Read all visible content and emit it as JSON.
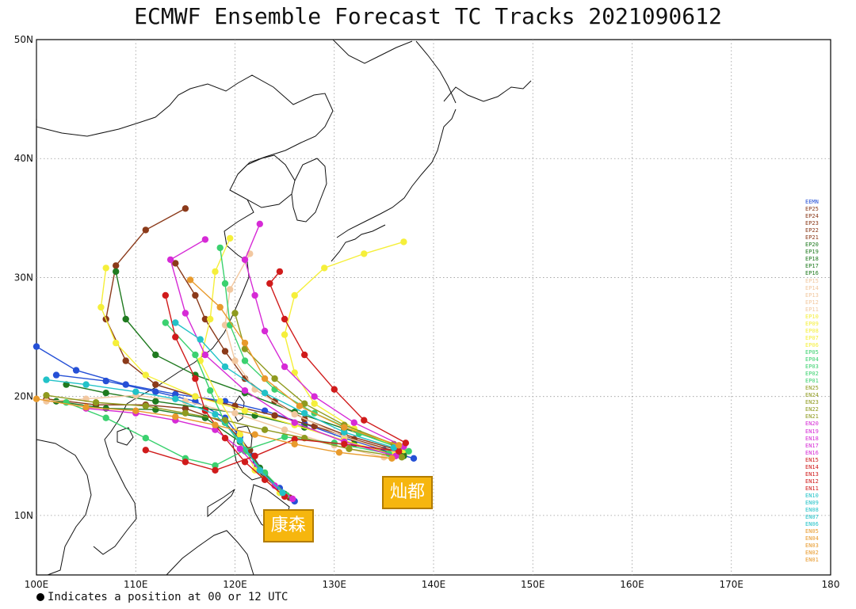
{
  "chart_data": {
    "type": "map-track",
    "title": "ECMWF Ensemble Forecast TC Tracks 2021090612",
    "x_ticks": [
      "100E",
      "110E",
      "120E",
      "130E",
      "140E",
      "150E",
      "160E",
      "170E",
      "180"
    ],
    "y_ticks": [
      "10N",
      "20N",
      "30N",
      "40N",
      "50N"
    ],
    "lon_range": [
      100,
      180
    ],
    "lat_range": [
      5,
      50
    ],
    "grid": "dotted",
    "footnote": "Indicates a position at 00 or 12 UTC",
    "storm_labels": [
      {
        "name": "灿都",
        "lon": 138.0,
        "lat": 14.0
      },
      {
        "name": "康森",
        "lon": 126.0,
        "lat": 11.2
      }
    ],
    "legend": [
      {
        "name": "EEMN",
        "color": "#2550d6"
      },
      {
        "name": "EP25",
        "color": "#8b3a1a"
      },
      {
        "name": "EP24",
        "color": "#8b3a1a"
      },
      {
        "name": "EP23",
        "color": "#8b3a1a"
      },
      {
        "name": "EP22",
        "color": "#8b3a1a"
      },
      {
        "name": "EP21",
        "color": "#8b3a1a"
      },
      {
        "name": "EP20",
        "color": "#1f7a1f"
      },
      {
        "name": "EP19",
        "color": "#1f7a1f"
      },
      {
        "name": "EP18",
        "color": "#1f7a1f"
      },
      {
        "name": "EP17",
        "color": "#1f7a1f"
      },
      {
        "name": "EP16",
        "color": "#1f7a1f"
      },
      {
        "name": "EP15",
        "color": "#f2c8a0"
      },
      {
        "name": "EP14",
        "color": "#f2c8a0"
      },
      {
        "name": "EP13",
        "color": "#f2c8a0"
      },
      {
        "name": "EP12",
        "color": "#f2c8a0"
      },
      {
        "name": "EP11",
        "color": "#f2c8a0"
      },
      {
        "name": "EP10",
        "color": "#f5ef3a"
      },
      {
        "name": "EP09",
        "color": "#f5ef3a"
      },
      {
        "name": "EP08",
        "color": "#f5ef3a"
      },
      {
        "name": "EP07",
        "color": "#f5ef3a"
      },
      {
        "name": "EP06",
        "color": "#f5ef3a"
      },
      {
        "name": "EP05",
        "color": "#3bd16f"
      },
      {
        "name": "EP04",
        "color": "#3bd16f"
      },
      {
        "name": "EP03",
        "color": "#3bd16f"
      },
      {
        "name": "EP02",
        "color": "#3bd16f"
      },
      {
        "name": "EP01",
        "color": "#3bd16f"
      },
      {
        "name": "EN25",
        "color": "#8f9a1f"
      },
      {
        "name": "EN24",
        "color": "#8f9a1f"
      },
      {
        "name": "EN23",
        "color": "#8f9a1f"
      },
      {
        "name": "EN22",
        "color": "#8f9a1f"
      },
      {
        "name": "EN21",
        "color": "#8f9a1f"
      },
      {
        "name": "EN20",
        "color": "#d62ad6"
      },
      {
        "name": "EN19",
        "color": "#d62ad6"
      },
      {
        "name": "EN18",
        "color": "#d62ad6"
      },
      {
        "name": "EN17",
        "color": "#d62ad6"
      },
      {
        "name": "EN16",
        "color": "#d62ad6"
      },
      {
        "name": "EN15",
        "color": "#d01b1b"
      },
      {
        "name": "EN14",
        "color": "#d01b1b"
      },
      {
        "name": "EN13",
        "color": "#d01b1b"
      },
      {
        "name": "EN12",
        "color": "#d01b1b"
      },
      {
        "name": "EN11",
        "color": "#d01b1b"
      },
      {
        "name": "EN10",
        "color": "#22c2c8"
      },
      {
        "name": "EN09",
        "color": "#22c2c8"
      },
      {
        "name": "EN08",
        "color": "#22c2c8"
      },
      {
        "name": "EN07",
        "color": "#22c2c8"
      },
      {
        "name": "EN06",
        "color": "#22c2c8"
      },
      {
        "name": "EN05",
        "color": "#e89a2c"
      },
      {
        "name": "EN04",
        "color": "#e89a2c"
      },
      {
        "name": "EN03",
        "color": "#e89a2c"
      },
      {
        "name": "EN02",
        "color": "#e89a2c"
      },
      {
        "name": "EN01",
        "color": "#e89a2c"
      }
    ],
    "tracks": [
      {
        "color": "#2550d6",
        "points": [
          [
            138,
            14.8
          ],
          [
            135,
            15.5
          ],
          [
            131,
            16.5
          ],
          [
            127,
            17.7
          ],
          [
            123,
            18.8
          ],
          [
            119,
            19.6
          ],
          [
            114,
            20.2
          ],
          [
            109,
            21.0
          ],
          [
            104,
            22.2
          ],
          [
            100,
            24.2
          ]
        ]
      },
      {
        "color": "#2550d6",
        "points": [
          [
            126,
            11.2
          ],
          [
            124.5,
            12.3
          ],
          [
            123,
            13.5
          ],
          [
            121.8,
            15.0
          ],
          [
            120.5,
            16.6
          ],
          [
            119,
            18.2
          ],
          [
            116,
            19.6
          ],
          [
            112,
            20.4
          ],
          [
            107,
            21.3
          ],
          [
            102,
            21.8
          ]
        ]
      },
      {
        "color": "#8b3a1a",
        "points": [
          [
            137,
            15.2
          ],
          [
            132,
            16.4
          ],
          [
            128,
            17.5
          ],
          [
            124,
            18.4
          ],
          [
            120,
            19.2
          ],
          [
            116,
            20.0
          ],
          [
            112,
            21.0
          ],
          [
            109,
            23.0
          ],
          [
            107,
            26.5
          ],
          [
            108,
            31.0
          ],
          [
            111,
            34.0
          ],
          [
            115,
            35.8
          ]
        ]
      },
      {
        "color": "#8b3a1a",
        "points": [
          [
            125.5,
            11.5
          ],
          [
            123,
            13.2
          ],
          [
            121.5,
            15.5
          ],
          [
            119,
            17.8
          ],
          [
            115,
            19.0
          ],
          [
            111,
            19.3
          ],
          [
            106,
            19.3
          ],
          [
            101,
            19.8
          ]
        ]
      },
      {
        "color": "#8b3a1a",
        "points": [
          [
            136,
            15.6
          ],
          [
            131,
            16.8
          ],
          [
            127,
            18.1
          ],
          [
            124,
            19.6
          ],
          [
            121,
            21.5
          ],
          [
            119,
            23.8
          ],
          [
            117,
            26.5
          ],
          [
            116,
            28.5
          ],
          [
            114,
            31.2
          ]
        ]
      },
      {
        "color": "#1f7a1f",
        "points": [
          [
            137,
            15.0
          ],
          [
            132,
            16.0
          ],
          [
            127,
            17.4
          ],
          [
            122,
            18.4
          ],
          [
            117,
            19.0
          ],
          [
            112,
            19.6
          ],
          [
            107,
            20.3
          ],
          [
            103,
            21.0
          ]
        ]
      },
      {
        "color": "#1f7a1f",
        "points": [
          [
            136.5,
            15.8
          ],
          [
            131,
            17.3
          ],
          [
            126,
            18.7
          ],
          [
            121,
            20.3
          ],
          [
            116,
            21.8
          ],
          [
            112,
            23.5
          ],
          [
            109,
            26.5
          ],
          [
            108,
            30.5
          ]
        ]
      },
      {
        "color": "#1f7a1f",
        "points": [
          [
            125,
            11.8
          ],
          [
            122.5,
            14.0
          ],
          [
            120.5,
            16.2
          ],
          [
            117,
            18.2
          ],
          [
            112,
            18.9
          ],
          [
            107,
            19.0
          ],
          [
            102,
            19.6
          ]
        ]
      },
      {
        "color": "#f2c8a0",
        "points": [
          [
            136,
            15.3
          ],
          [
            131,
            16.6
          ],
          [
            126,
            18.5
          ],
          [
            122,
            20.6
          ],
          [
            120,
            23.0
          ],
          [
            119,
            26.0
          ],
          [
            119.5,
            29.0
          ],
          [
            121.5,
            32.0
          ]
        ]
      },
      {
        "color": "#f2c8a0",
        "points": [
          [
            135,
            14.9
          ],
          [
            130,
            15.9
          ],
          [
            125,
            17.2
          ],
          [
            120,
            18.6
          ],
          [
            115,
            19.6
          ],
          [
            110,
            20.1
          ],
          [
            105,
            19.8
          ],
          [
            101,
            19.6
          ]
        ]
      },
      {
        "color": "#f5ef3a",
        "points": [
          [
            137,
            15.5
          ],
          [
            132,
            17.3
          ],
          [
            128,
            19.4
          ],
          [
            126,
            22.0
          ],
          [
            125,
            25.2
          ],
          [
            126,
            28.5
          ],
          [
            129,
            30.8
          ],
          [
            133,
            32.0
          ],
          [
            137,
            33.0
          ]
        ]
      },
      {
        "color": "#f5ef3a",
        "points": [
          [
            136,
            15.1
          ],
          [
            131,
            16.3
          ],
          [
            126,
            17.6
          ],
          [
            121,
            18.8
          ],
          [
            116,
            20.0
          ],
          [
            111,
            21.8
          ],
          [
            108,
            24.5
          ],
          [
            106.5,
            27.5
          ],
          [
            107,
            30.8
          ]
        ]
      },
      {
        "color": "#f5ef3a",
        "points": [
          [
            124.5,
            11.9
          ],
          [
            122,
            13.8
          ],
          [
            120.5,
            16.8
          ],
          [
            118.5,
            19.6
          ],
          [
            116.5,
            23.0
          ],
          [
            117.5,
            26.5
          ],
          [
            118,
            30.5
          ],
          [
            119.5,
            33.3
          ]
        ]
      },
      {
        "color": "#3bd16f",
        "points": [
          [
            137.5,
            15.4
          ],
          [
            132.5,
            16.9
          ],
          [
            128,
            18.6
          ],
          [
            124,
            20.6
          ],
          [
            121,
            23.0
          ],
          [
            119.5,
            26.0
          ],
          [
            119,
            29.5
          ],
          [
            118.5,
            32.5
          ]
        ]
      },
      {
        "color": "#3bd16f",
        "points": [
          [
            135.5,
            15.2
          ],
          [
            130,
            16.1
          ],
          [
            125,
            16.6
          ],
          [
            121,
            15.5
          ],
          [
            118,
            14.2
          ],
          [
            115,
            14.8
          ],
          [
            111,
            16.5
          ],
          [
            107,
            18.2
          ],
          [
            103,
            19.5
          ]
        ]
      },
      {
        "color": "#3bd16f",
        "points": [
          [
            125.2,
            11.7
          ],
          [
            123,
            13.6
          ],
          [
            121,
            15.4
          ],
          [
            119,
            17.8
          ],
          [
            117.5,
            20.5
          ],
          [
            116,
            23.5
          ],
          [
            113,
            26.2
          ]
        ]
      },
      {
        "color": "#8f9a1f",
        "points": [
          [
            136.8,
            14.9
          ],
          [
            131.5,
            15.6
          ],
          [
            127,
            16.5
          ],
          [
            123,
            17.2
          ],
          [
            119,
            18.0
          ],
          [
            115,
            18.6
          ],
          [
            111,
            19.2
          ],
          [
            106,
            19.5
          ],
          [
            101,
            20.1
          ]
        ]
      },
      {
        "color": "#8f9a1f",
        "points": [
          [
            136,
            16.0
          ],
          [
            131,
            17.6
          ],
          [
            127,
            19.4
          ],
          [
            124,
            21.5
          ],
          [
            121,
            24.0
          ],
          [
            120,
            27.0
          ]
        ]
      },
      {
        "color": "#d62ad6",
        "points": [
          [
            137,
            15.8
          ],
          [
            132,
            17.8
          ],
          [
            128,
            20.0
          ],
          [
            125,
            22.5
          ],
          [
            123,
            25.5
          ],
          [
            122,
            28.5
          ],
          [
            121,
            31.5
          ],
          [
            122.5,
            34.5
          ]
        ]
      },
      {
        "color": "#d62ad6",
        "points": [
          [
            125.8,
            11.4
          ],
          [
            124,
            12.5
          ],
          [
            122.5,
            13.8
          ],
          [
            120.5,
            15.6
          ],
          [
            118,
            17.2
          ],
          [
            114,
            18.0
          ],
          [
            110,
            18.6
          ],
          [
            105,
            19.0
          ]
        ]
      },
      {
        "color": "#d62ad6",
        "points": [
          [
            136.2,
            15.0
          ],
          [
            131,
            16.2
          ],
          [
            126,
            17.8
          ],
          [
            121,
            20.5
          ],
          [
            117,
            23.5
          ],
          [
            115,
            27.0
          ],
          [
            113.5,
            31.5
          ],
          [
            117,
            33.2
          ]
        ]
      },
      {
        "color": "#d01b1b",
        "points": [
          [
            136.5,
            15.4
          ],
          [
            131,
            16.0
          ],
          [
            126,
            16.4
          ],
          [
            122,
            15.0
          ],
          [
            118,
            13.8
          ],
          [
            115,
            14.5
          ],
          [
            111,
            15.5
          ]
        ]
      },
      {
        "color": "#d01b1b",
        "points": [
          [
            137.2,
            16.1
          ],
          [
            133,
            18.0
          ],
          [
            130,
            20.6
          ],
          [
            127,
            23.5
          ],
          [
            125,
            26.5
          ],
          [
            123.5,
            29.5
          ],
          [
            124.5,
            30.5
          ]
        ]
      },
      {
        "color": "#d01b1b",
        "points": [
          [
            125,
            11.6
          ],
          [
            123,
            13.0
          ],
          [
            121,
            14.5
          ],
          [
            119,
            16.5
          ],
          [
            117,
            18.8
          ],
          [
            116,
            21.5
          ],
          [
            114,
            25.0
          ],
          [
            113,
            28.5
          ]
        ]
      },
      {
        "color": "#22c2c8",
        "points": [
          [
            136,
            15.7
          ],
          [
            131,
            17.0
          ],
          [
            127,
            18.6
          ],
          [
            123,
            20.3
          ],
          [
            119,
            22.5
          ],
          [
            116.5,
            24.8
          ],
          [
            114,
            26.2
          ]
        ]
      },
      {
        "color": "#22c2c8",
        "points": [
          [
            124.8,
            11.9
          ],
          [
            122.5,
            13.8
          ],
          [
            120.5,
            16.3
          ],
          [
            118,
            18.5
          ],
          [
            114,
            19.8
          ],
          [
            110,
            20.4
          ],
          [
            105,
            21.0
          ],
          [
            101,
            21.4
          ]
        ]
      },
      {
        "color": "#e89a2c",
        "points": [
          [
            135.8,
            14.8
          ],
          [
            130.5,
            15.3
          ],
          [
            126,
            16.0
          ],
          [
            122,
            16.8
          ],
          [
            118,
            17.6
          ],
          [
            114,
            18.3
          ],
          [
            110,
            18.8
          ],
          [
            105,
            19.1
          ],
          [
            100,
            19.8
          ]
        ]
      },
      {
        "color": "#e89a2c",
        "points": [
          [
            136.5,
            15.9
          ],
          [
            131,
            17.4
          ],
          [
            126.5,
            19.2
          ],
          [
            123,
            21.5
          ],
          [
            121,
            24.5
          ],
          [
            118.5,
            27.5
          ],
          [
            115.5,
            29.8
          ]
        ]
      }
    ]
  }
}
